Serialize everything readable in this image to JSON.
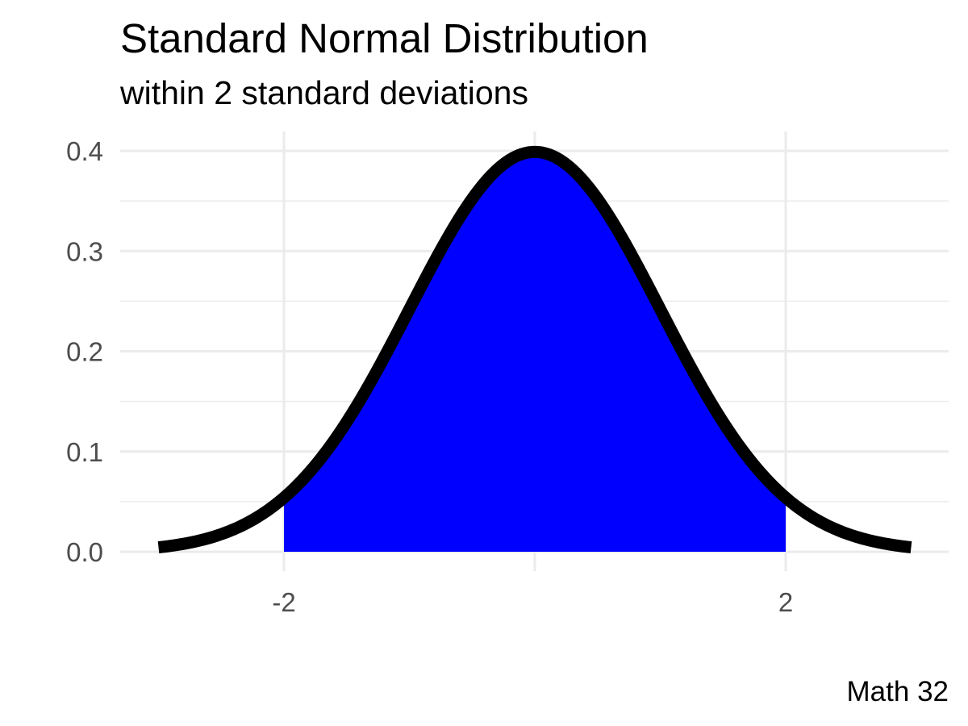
{
  "chart_data": {
    "type": "area",
    "title": "Standard Normal Distribution",
    "subtitle": "within 2 standard deviations",
    "caption": "Math 32",
    "xlabel": "",
    "ylabel": "",
    "xlim": [
      -3,
      3
    ],
    "ylim": [
      0,
      0.4
    ],
    "x_ticks": [
      -2,
      2
    ],
    "x_tick_labels": [
      "-2",
      "2"
    ],
    "y_ticks": [
      0,
      0.1,
      0.2,
      0.3,
      0.4
    ],
    "y_tick_labels": [
      "0.0",
      "0.1",
      "0.2",
      "0.3",
      "0.4"
    ],
    "grid": true,
    "curve": {
      "function": "standard normal density",
      "x_range": [
        -3,
        3
      ],
      "color": "#000000"
    },
    "shaded_region": {
      "x_range": [
        -2,
        2
      ],
      "color": "#0000ff"
    }
  }
}
